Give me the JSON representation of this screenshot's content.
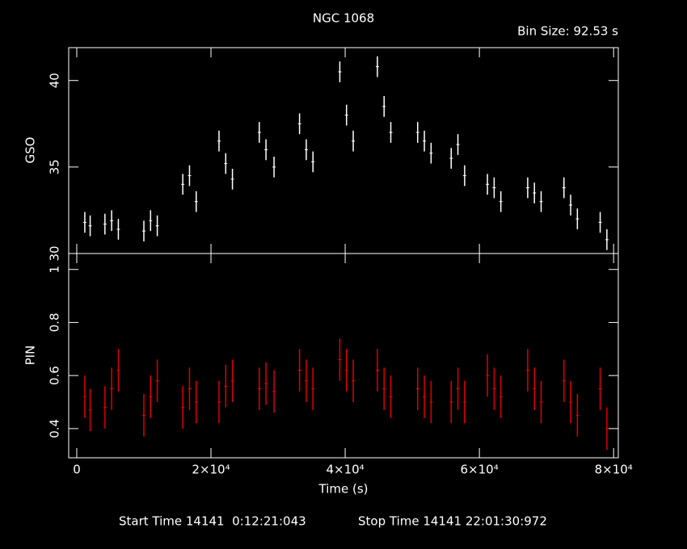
{
  "chart_data": [
    {
      "type": "scatter",
      "title": "NGC 1068",
      "subtitle": "Bin Size: 92.53 s",
      "ylabel": "GSO",
      "color": "#ffffff",
      "xlim": [
        -1200,
        80700
      ],
      "ylim": [
        30,
        41.9
      ],
      "yticks": [
        30,
        35,
        40
      ],
      "x": [
        1200,
        2000,
        4200,
        5200,
        6200,
        10000,
        11000,
        12000,
        15800,
        16800,
        17800,
        21200,
        22200,
        23200,
        27200,
        28200,
        29400,
        33200,
        34200,
        35200,
        39200,
        40200,
        41200,
        44800,
        45800,
        46800,
        50800,
        51800,
        52800,
        55800,
        56800,
        57800,
        61200,
        62200,
        63200,
        67200,
        68200,
        69200,
        72600,
        73600,
        74600,
        78000,
        79000
      ],
      "values": [
        31.8,
        31.6,
        31.7,
        31.9,
        31.4,
        31.3,
        31.9,
        31.6,
        34.0,
        34.5,
        33.0,
        36.5,
        35.2,
        34.3,
        37.0,
        36.0,
        35.0,
        37.5,
        36.0,
        35.3,
        40.5,
        38.0,
        36.5,
        40.8,
        38.5,
        37.0,
        37.0,
        36.5,
        35.8,
        35.5,
        36.3,
        34.5,
        34.0,
        33.8,
        33.0,
        33.8,
        33.5,
        33.0,
        33.8,
        32.8,
        32.0,
        31.8,
        30.8
      ],
      "errors": [
        0.6,
        0.6,
        0.6,
        0.6,
        0.6,
        0.6,
        0.6,
        0.6,
        0.6,
        0.6,
        0.6,
        0.6,
        0.6,
        0.6,
        0.6,
        0.6,
        0.6,
        0.6,
        0.6,
        0.6,
        0.6,
        0.6,
        0.6,
        0.6,
        0.6,
        0.6,
        0.6,
        0.6,
        0.6,
        0.6,
        0.6,
        0.6,
        0.6,
        0.6,
        0.6,
        0.6,
        0.6,
        0.6,
        0.6,
        0.6,
        0.6,
        0.6,
        0.6
      ]
    },
    {
      "type": "scatter",
      "ylabel": "PIN",
      "xlabel": "Time (s)",
      "color": "#e00000",
      "xlim": [
        -1200,
        80700
      ],
      "ylim": [
        0.29,
        1.06
      ],
      "yticks": [
        0.4,
        0.6,
        0.8,
        1
      ],
      "xticks": [
        0,
        {
          "value": 20000,
          "label": "2×10⁴"
        },
        {
          "value": 40000,
          "label": "4×10⁴"
        },
        {
          "value": 60000,
          "label": "6×10⁴"
        },
        {
          "value": 80000,
          "label": "8×10⁴"
        }
      ],
      "x": [
        1200,
        2000,
        4200,
        5200,
        6200,
        10000,
        11000,
        12000,
        15800,
        16800,
        17800,
        21200,
        22200,
        23200,
        27200,
        28200,
        29400,
        33200,
        34200,
        35200,
        39200,
        40200,
        41200,
        44800,
        45800,
        46800,
        50800,
        51800,
        52800,
        55800,
        56800,
        57800,
        61200,
        62200,
        63200,
        67200,
        68200,
        69200,
        72600,
        73600,
        74600,
        78000,
        79000
      ],
      "values": [
        0.52,
        0.47,
        0.48,
        0.55,
        0.62,
        0.45,
        0.52,
        0.58,
        0.48,
        0.55,
        0.5,
        0.5,
        0.56,
        0.58,
        0.55,
        0.57,
        0.54,
        0.62,
        0.58,
        0.55,
        0.66,
        0.62,
        0.58,
        0.62,
        0.55,
        0.52,
        0.55,
        0.52,
        0.5,
        0.5,
        0.55,
        0.5,
        0.6,
        0.55,
        0.52,
        0.62,
        0.55,
        0.5,
        0.58,
        0.5,
        0.45,
        0.55,
        0.4
      ],
      "errors": [
        0.08,
        0.08,
        0.08,
        0.08,
        0.08,
        0.08,
        0.08,
        0.08,
        0.08,
        0.08,
        0.08,
        0.08,
        0.08,
        0.08,
        0.08,
        0.08,
        0.08,
        0.08,
        0.08,
        0.08,
        0.08,
        0.08,
        0.08,
        0.08,
        0.08,
        0.08,
        0.08,
        0.08,
        0.08,
        0.08,
        0.08,
        0.08,
        0.08,
        0.08,
        0.08,
        0.08,
        0.08,
        0.08,
        0.08,
        0.08,
        0.08,
        0.08,
        0.08
      ]
    }
  ],
  "footer": {
    "start": "Start Time 14141  0:12:21:043",
    "stop": "Stop Time 14141 22:01:30:972"
  }
}
